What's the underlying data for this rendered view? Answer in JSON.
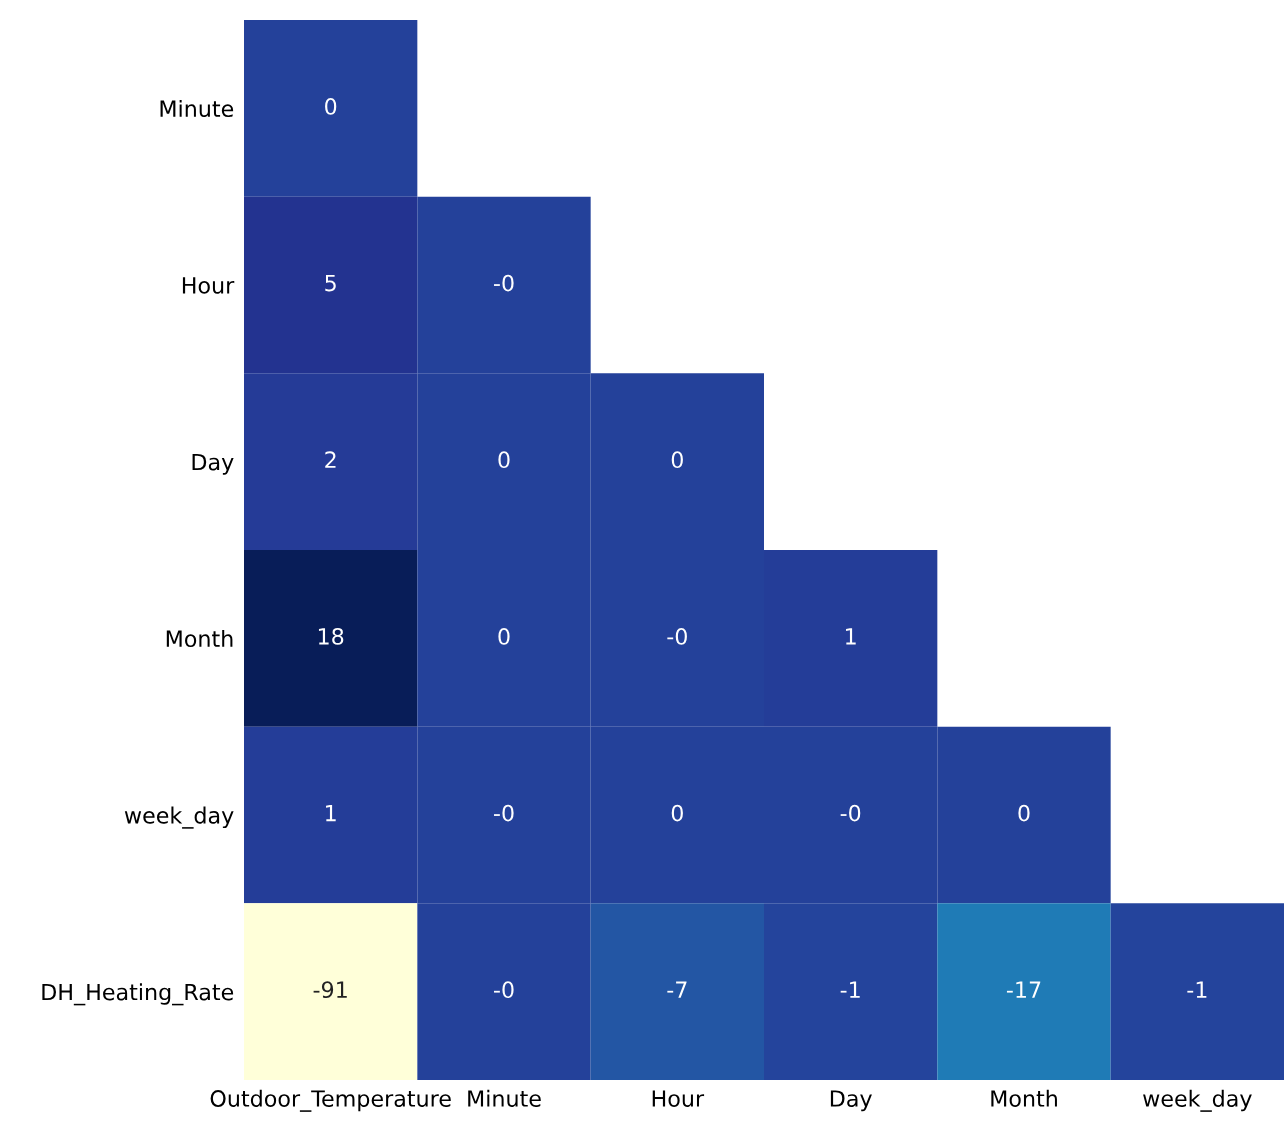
{
  "chart_data": {
    "type": "heatmap",
    "categories": [
      "Outdoor_Temperature",
      "Minute",
      "Hour",
      "Day",
      "Month",
      "week_day"
    ],
    "y_categories": [
      "Minute",
      "Hour",
      "Day",
      "Month",
      "week_day",
      "DH_Heating_Rate"
    ],
    "cells": [
      [
        0,
        null,
        null,
        null,
        null,
        null
      ],
      [
        5,
        0,
        null,
        null,
        null,
        null
      ],
      [
        2,
        0,
        0,
        null,
        null,
        null
      ],
      [
        18,
        0,
        0,
        1,
        null,
        null
      ],
      [
        1,
        0,
        0,
        0,
        0,
        null
      ],
      [
        -91,
        0,
        -7,
        -1,
        -17,
        -1
      ]
    ],
    "cell_labels": [
      [
        "0",
        null,
        null,
        null,
        null,
        null
      ],
      [
        "5",
        "-0",
        null,
        null,
        null,
        null
      ],
      [
        "2",
        "0",
        "0",
        null,
        null,
        null
      ],
      [
        "18",
        "0",
        "-0",
        "1",
        null,
        null
      ],
      [
        "1",
        "-0",
        "0",
        "-0",
        "0",
        null
      ],
      [
        "-91",
        "-0",
        "-7",
        "-1",
        "-17",
        "-1"
      ]
    ]
  }
}
